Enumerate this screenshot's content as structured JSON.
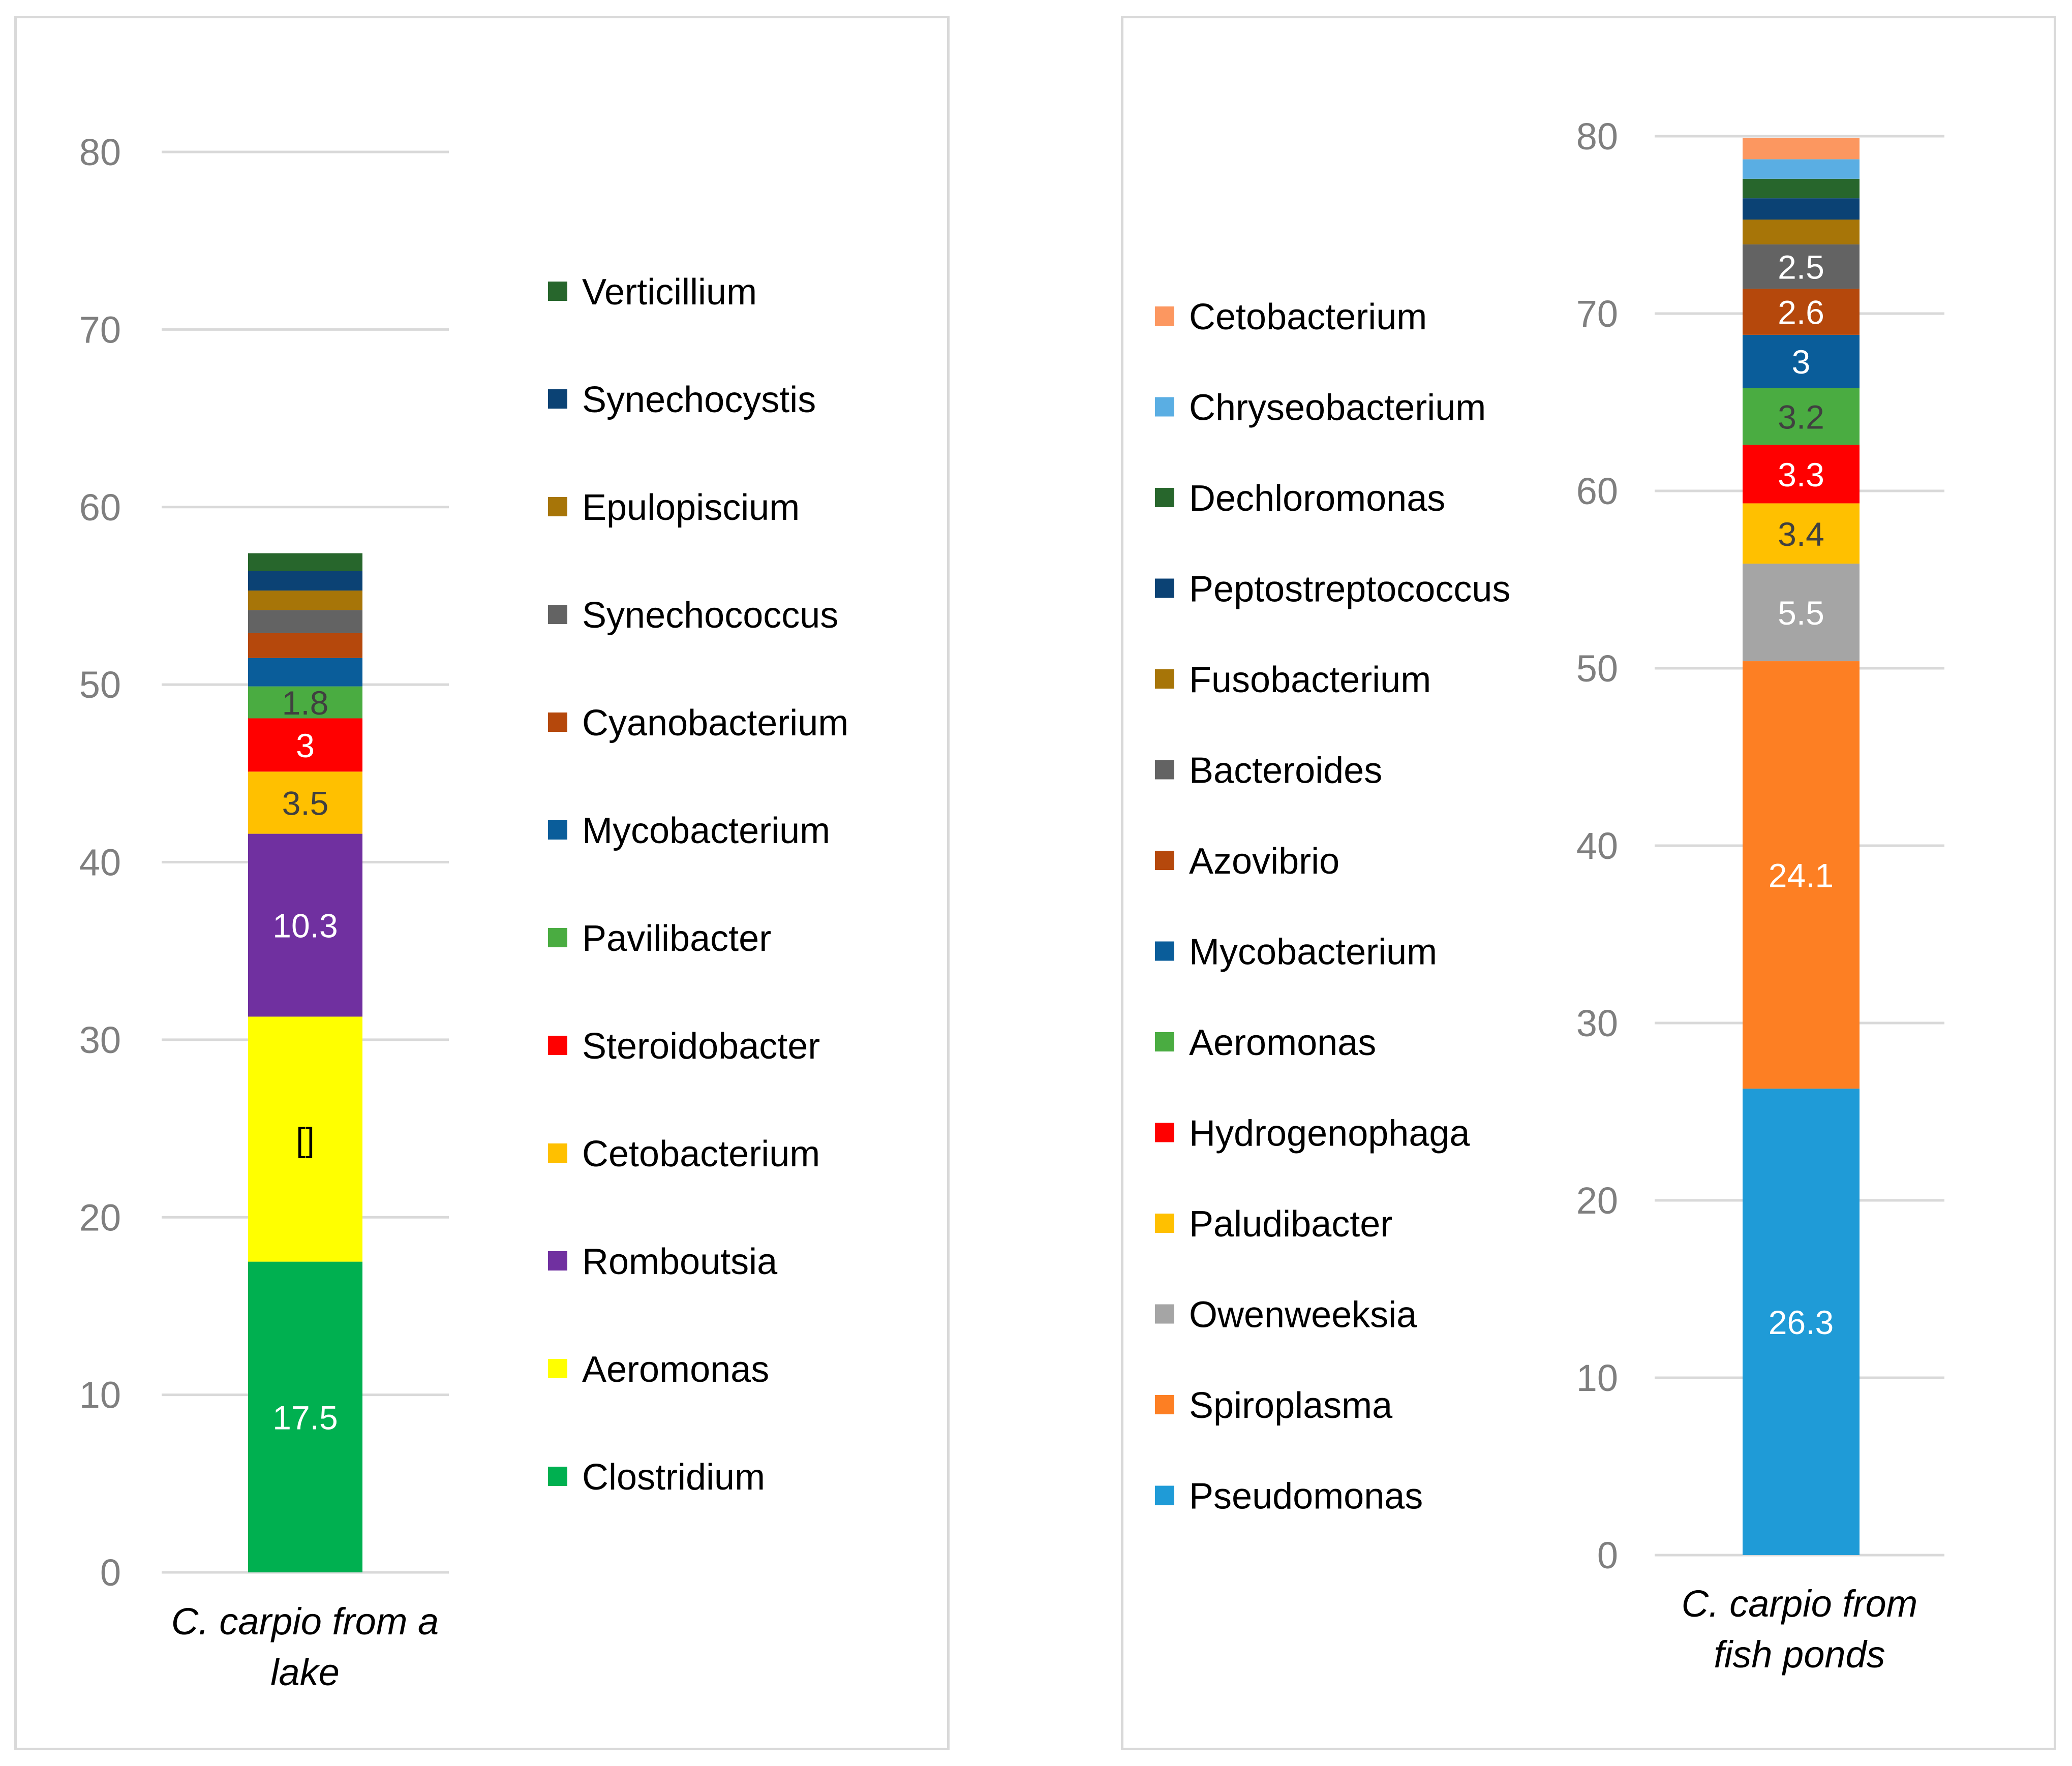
{
  "chart_data": [
    {
      "type": "stacked-bar",
      "category": "C. carpio from a lake",
      "ylim": [
        0,
        80
      ],
      "yticks": [
        0,
        10,
        20,
        30,
        40,
        50,
        60,
        70,
        80
      ],
      "grid": true,
      "legend_position": "right",
      "segments": [
        {
          "name": "Clostridium",
          "value": 17.5,
          "color": "#00b050",
          "label": "17.5",
          "label_color": "#ffffff"
        },
        {
          "name": "Aeromonas",
          "value": 13.8,
          "color": "#ffff00",
          "label": "[]",
          "label_color": "#000000"
        },
        {
          "name": "Romboutsia",
          "value": 10.3,
          "color": "#7030a0",
          "label": "10.3",
          "label_color": "#ffffff"
        },
        {
          "name": "Cetobacterium",
          "value": 3.5,
          "color": "#ffc000",
          "label": "3.5",
          "label_color": "#404040"
        },
        {
          "name": "Steroidobacter",
          "value": 3,
          "color": "#ff0000",
          "label": "3",
          "label_color": "#ffffff"
        },
        {
          "name": "Pavilibacter",
          "value": 1.8,
          "color": "#4aac41",
          "label": "1.8",
          "label_color": "#404040"
        },
        {
          "name": "Mycobacterium",
          "value": 1.6,
          "color": "#0a5d9a",
          "label": "",
          "label_color": "#ffffff"
        },
        {
          "name": "Cyanobacterium",
          "value": 1.4,
          "color": "#b5480c",
          "label": "",
          "label_color": "#ffffff"
        },
        {
          "name": "Synechococcus",
          "value": 1.3,
          "color": "#636363",
          "label": "",
          "label_color": "#ffffff"
        },
        {
          "name": "Epulopiscium",
          "value": 1.1,
          "color": "#a77508",
          "label": "",
          "label_color": "#ffffff"
        },
        {
          "name": "Synechocystis",
          "value": 1.1,
          "color": "#0b4274",
          "label": "",
          "label_color": "#ffffff"
        },
        {
          "name": "Verticillium",
          "value": 1.0,
          "color": "#27662c",
          "label": "",
          "label_color": "#ffffff"
        }
      ]
    },
    {
      "type": "stacked-bar",
      "category": "C. carpio from fish ponds",
      "ylim": [
        0,
        80
      ],
      "yticks": [
        0,
        10,
        20,
        30,
        40,
        50,
        60,
        70,
        80
      ],
      "grid": true,
      "legend_position": "left",
      "segments": [
        {
          "name": "Pseudomonas",
          "value": 26.3,
          "color": "#1f9bd7",
          "label": "26.3",
          "label_color": "#ffffff"
        },
        {
          "name": "Spiroplasma",
          "value": 24.1,
          "color": "#fd7f23",
          "label": "24.1",
          "label_color": "#ffffff"
        },
        {
          "name": "Owenweeksia",
          "value": 5.5,
          "color": "#a5a5a5",
          "label": "5.5",
          "label_color": "#ffffff"
        },
        {
          "name": "Paludibacter",
          "value": 3.4,
          "color": "#ffc000",
          "label": "3.4",
          "label_color": "#404040"
        },
        {
          "name": "Hydrogenophaga",
          "value": 3.3,
          "color": "#ff0000",
          "label": "3.3",
          "label_color": "#ffffff"
        },
        {
          "name": "Aeromonas",
          "value": 3.2,
          "color": "#4aac41",
          "label": "3.2",
          "label_color": "#404040"
        },
        {
          "name": "Mycobacterium",
          "value": 3,
          "color": "#0a5d9a",
          "label": "3",
          "label_color": "#ffffff"
        },
        {
          "name": "Azovibrio",
          "value": 2.6,
          "color": "#b5480c",
          "label": "2.6",
          "label_color": "#ffffff"
        },
        {
          "name": "Bacteroides",
          "value": 2.5,
          "color": "#636363",
          "label": "2.5",
          "label_color": "#ffffff"
        },
        {
          "name": "Fusobacterium",
          "value": 1.4,
          "color": "#a77508",
          "label": "",
          "label_color": "#ffffff"
        },
        {
          "name": "Peptostreptococcus",
          "value": 1.2,
          "color": "#0b4274",
          "label": "",
          "label_color": "#ffffff"
        },
        {
          "name": "Dechloromonas",
          "value": 1.1,
          "color": "#27662c",
          "label": "",
          "label_color": "#ffffff"
        },
        {
          "name": "Chryseobacterium",
          "value": 1.1,
          "color": "#5aaee3",
          "label": "",
          "label_color": "#ffffff"
        },
        {
          "name": "Cetobacterium",
          "value": 1.2,
          "color": "#fc9760",
          "label": "",
          "label_color": "#ffffff"
        }
      ]
    }
  ]
}
